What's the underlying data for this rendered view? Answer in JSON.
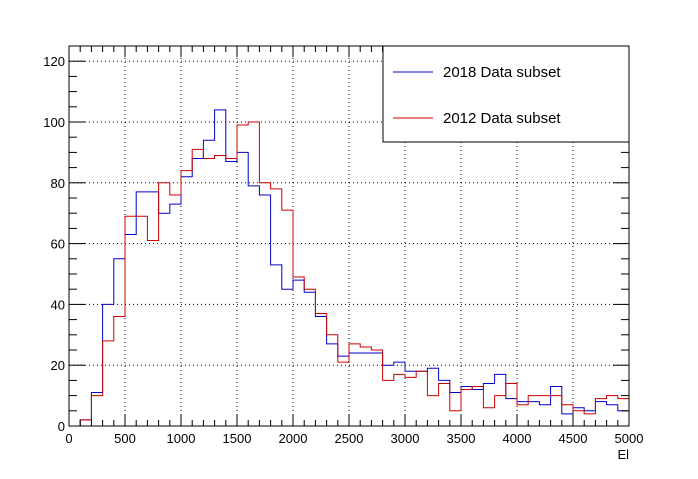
{
  "chart_data": {
    "type": "line",
    "title": "",
    "xlabel": "El",
    "ylabel": "",
    "xlim": [
      0,
      5000
    ],
    "ylim": [
      0,
      125
    ],
    "bin_width": 100,
    "x_ticks": [
      0,
      500,
      1000,
      1500,
      2000,
      2500,
      3000,
      3500,
      4000,
      4500,
      5000
    ],
    "y_ticks": [
      0,
      20,
      40,
      60,
      80,
      100,
      120
    ],
    "grid": true,
    "legend_position": "top-right",
    "x": [
      0,
      100,
      200,
      300,
      400,
      500,
      600,
      700,
      800,
      900,
      1000,
      1100,
      1200,
      1300,
      1400,
      1500,
      1600,
      1700,
      1800,
      1900,
      2000,
      2100,
      2200,
      2300,
      2400,
      2500,
      2600,
      2700,
      2800,
      2900,
      3000,
      3100,
      3200,
      3300,
      3400,
      3500,
      3600,
      3700,
      3800,
      3900,
      4000,
      4100,
      4200,
      4300,
      4400,
      4500,
      4600,
      4700,
      4800,
      4900
    ],
    "series": [
      {
        "name": "2018 Data subset",
        "color": "#0000cc",
        "values": [
          0,
          2,
          11,
          40,
          55,
          63,
          77,
          77,
          70,
          73,
          82,
          88,
          94,
          104,
          87,
          90,
          79,
          76,
          53,
          45,
          48,
          44,
          36,
          27,
          23,
          24,
          24,
          24,
          20,
          21,
          18,
          18,
          19,
          15,
          11,
          13,
          12,
          14,
          17,
          9,
          8,
          8,
          7,
          13,
          4,
          6,
          5,
          8,
          7,
          5
        ]
      },
      {
        "name": "2012 Data subset",
        "color": "#cc0000",
        "values": [
          0,
          2,
          10,
          28,
          36,
          69,
          69,
          61,
          80,
          76,
          84,
          91,
          88,
          89,
          88,
          99,
          100,
          80,
          78,
          71,
          49,
          45,
          37,
          30,
          21,
          27,
          26,
          25,
          15,
          17,
          16,
          18,
          10,
          14,
          5,
          12,
          13,
          6,
          10,
          14,
          7,
          10,
          10,
          10,
          7,
          5,
          4,
          9,
          10,
          9
        ]
      }
    ]
  }
}
